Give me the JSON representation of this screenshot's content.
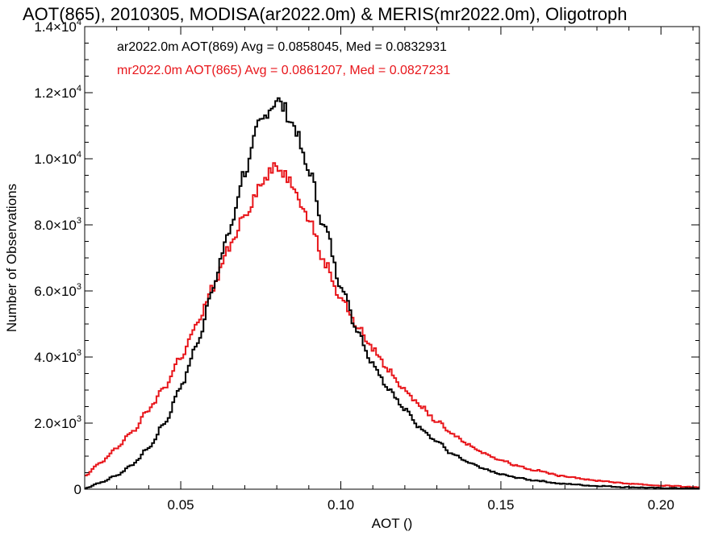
{
  "chart_data": {
    "type": "histogram-step",
    "title": "AOT(865), 2010305, MODISA(ar2022.0m) & MERIS(mr2022.0m), Oligotroph",
    "xlabel": "AOT ()",
    "ylabel": "Number of Observations",
    "xlim": [
      0.02,
      0.212
    ],
    "ylim": [
      0,
      14000
    ],
    "x_ticks": [
      0.05,
      0.1,
      0.15,
      0.2
    ],
    "x_tick_labels": [
      "0.05",
      "0.10",
      "0.15",
      "0.20"
    ],
    "y_ticks": [
      {
        "value": 0,
        "mantissa": "0",
        "exponent": ""
      },
      {
        "value": 2000,
        "mantissa": "2.0×10",
        "exponent": "3"
      },
      {
        "value": 4000,
        "mantissa": "4.0×10",
        "exponent": "3"
      },
      {
        "value": 6000,
        "mantissa": "6.0×10",
        "exponent": "3"
      },
      {
        "value": 8000,
        "mantissa": "8.0×10",
        "exponent": "3"
      },
      {
        "value": 10000,
        "mantissa": "1.0×10",
        "exponent": "4"
      },
      {
        "value": 12000,
        "mantissa": "1.2×10",
        "exponent": "4"
      },
      {
        "value": 14000,
        "mantissa": "1.4×10",
        "exponent": "4"
      }
    ],
    "annotations": [
      {
        "text": "ar2022.0m AOT(869) Avg = 0.0858045, Med = 0.0832931",
        "color": "#000000"
      },
      {
        "text": "mr2022.0m AOT(865) Avg = 0.0861207, Med = 0.0827231",
        "color": "#e8161b"
      }
    ],
    "series": [
      {
        "color": "#000000",
        "points": [
          [
            0.02,
            30
          ],
          [
            0.025,
            200
          ],
          [
            0.03,
            420
          ],
          [
            0.035,
            750
          ],
          [
            0.04,
            1250
          ],
          [
            0.045,
            2000
          ],
          [
            0.05,
            3100
          ],
          [
            0.055,
            4350
          ],
          [
            0.06,
            6100
          ],
          [
            0.065,
            7750
          ],
          [
            0.07,
            9600
          ],
          [
            0.075,
            11100
          ],
          [
            0.078,
            11550
          ],
          [
            0.08,
            11800
          ],
          [
            0.082,
            11550
          ],
          [
            0.085,
            11050
          ],
          [
            0.09,
            9650
          ],
          [
            0.095,
            7900
          ],
          [
            0.1,
            6200
          ],
          [
            0.105,
            4850
          ],
          [
            0.11,
            3800
          ],
          [
            0.115,
            3050
          ],
          [
            0.12,
            2400
          ],
          [
            0.125,
            1850
          ],
          [
            0.13,
            1450
          ],
          [
            0.135,
            1050
          ],
          [
            0.14,
            800
          ],
          [
            0.145,
            600
          ],
          [
            0.15,
            450
          ],
          [
            0.155,
            350
          ],
          [
            0.16,
            270
          ],
          [
            0.17,
            160
          ],
          [
            0.18,
            100
          ],
          [
            0.19,
            60
          ],
          [
            0.2,
            35
          ],
          [
            0.212,
            20
          ]
        ]
      },
      {
        "color": "#e8161b",
        "points": [
          [
            0.02,
            400
          ],
          [
            0.025,
            800
          ],
          [
            0.03,
            1250
          ],
          [
            0.035,
            1750
          ],
          [
            0.04,
            2400
          ],
          [
            0.045,
            3100
          ],
          [
            0.05,
            4000
          ],
          [
            0.055,
            4950
          ],
          [
            0.06,
            6100
          ],
          [
            0.065,
            7250
          ],
          [
            0.07,
            8350
          ],
          [
            0.075,
            9200
          ],
          [
            0.078,
            9600
          ],
          [
            0.08,
            9750
          ],
          [
            0.082,
            9600
          ],
          [
            0.085,
            9250
          ],
          [
            0.09,
            8200
          ],
          [
            0.095,
            6850
          ],
          [
            0.1,
            5800
          ],
          [
            0.105,
            4950
          ],
          [
            0.11,
            4250
          ],
          [
            0.115,
            3600
          ],
          [
            0.12,
            3000
          ],
          [
            0.125,
            2500
          ],
          [
            0.13,
            2050
          ],
          [
            0.135,
            1650
          ],
          [
            0.14,
            1350
          ],
          [
            0.145,
            1080
          ],
          [
            0.15,
            880
          ],
          [
            0.155,
            720
          ],
          [
            0.16,
            580
          ],
          [
            0.17,
            390
          ],
          [
            0.18,
            260
          ],
          [
            0.19,
            170
          ],
          [
            0.2,
            110
          ],
          [
            0.212,
            60
          ]
        ]
      }
    ]
  }
}
